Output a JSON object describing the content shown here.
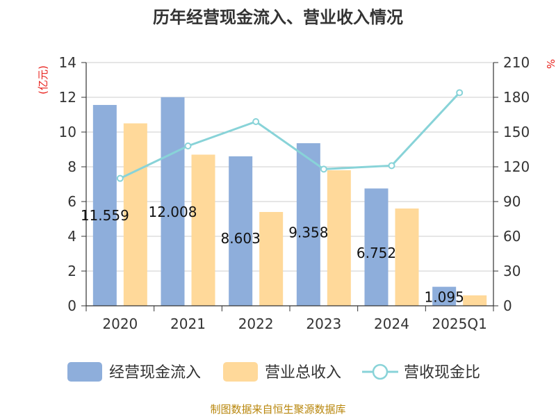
{
  "chart_data": {
    "type": "bar",
    "title": "历年经营现金流入、营业收入情况",
    "categories": [
      "2020",
      "2021",
      "2022",
      "2023",
      "2024",
      "2025Q1"
    ],
    "y_left": {
      "unit": "(亿元)",
      "min": 0,
      "max": 14,
      "ticks": [
        0,
        2,
        4,
        6,
        8,
        10,
        12,
        14
      ]
    },
    "y_right": {
      "unit": "%",
      "min": 0,
      "max": 210,
      "ticks": [
        0,
        30,
        60,
        90,
        120,
        150,
        180,
        210
      ]
    },
    "grid": true,
    "legend_position": "bottom",
    "series": [
      {
        "name": "经营现金流入",
        "type": "bar",
        "axis": "left",
        "color": "#8eaedb",
        "values": [
          11.559,
          12.008,
          8.603,
          9.358,
          6.752,
          1.095
        ],
        "labels": [
          "11.559",
          "12.008",
          "8.603",
          "9.358",
          "6.752",
          "1.095"
        ]
      },
      {
        "name": "营业总收入",
        "type": "bar",
        "axis": "left",
        "color": "#ffd99a",
        "values": [
          10.5,
          8.7,
          5.4,
          7.8,
          5.6,
          0.6
        ]
      },
      {
        "name": "营收现金比",
        "type": "line",
        "axis": "right",
        "color": "#88d3d8",
        "values": [
          110,
          138,
          159,
          118,
          121,
          184
        ]
      }
    ]
  },
  "footer": {
    "source": "制图数据来自恒生聚源数据库"
  }
}
